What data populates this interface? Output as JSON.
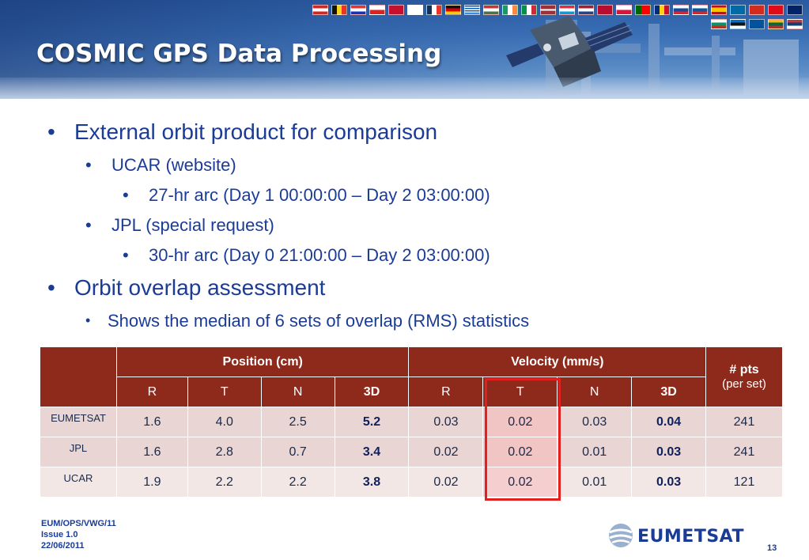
{
  "slide": {
    "title": "COSMIC GPS Data Processing",
    "page_number": "13"
  },
  "bullets": [
    {
      "level": 1,
      "text": "External orbit product for comparison"
    },
    {
      "level": 2,
      "text": "UCAR (website)"
    },
    {
      "level": 3,
      "text": "27-hr arc (Day 1 00:00:00 – Day 2 03:00:00)"
    },
    {
      "level": 2,
      "text": "JPL (special request)"
    },
    {
      "level": 3,
      "text": "30-hr arc (Day 0 21:00:00 – Day 2 03:00:00)"
    },
    {
      "level": 1,
      "text": "Orbit overlap assessment"
    },
    {
      "level": 2,
      "text": "Shows the median of 6 sets of overlap (RMS) statistics"
    }
  ],
  "table": {
    "group_headers": [
      "Position (cm)",
      "Velocity (mm/s)"
    ],
    "pts_header": "# pts",
    "pts_subheader": "(per set)",
    "sub_headers": [
      "R",
      "T",
      "N",
      "3D",
      "R",
      "T",
      "N",
      "3D"
    ],
    "rows": [
      {
        "label": "EUMETSAT",
        "values": [
          "1.6",
          "4.0",
          "2.5",
          "5.2",
          "0.03",
          "0.02",
          "0.03",
          "0.04"
        ],
        "pts": "241"
      },
      {
        "label": "JPL",
        "values": [
          "1.6",
          "2.8",
          "0.7",
          "3.4",
          "0.02",
          "0.02",
          "0.01",
          "0.03"
        ],
        "pts": "241"
      },
      {
        "label": "UCAR",
        "values": [
          "1.9",
          "2.2",
          "2.2",
          "3.8",
          "0.02",
          "0.02",
          "0.01",
          "0.03"
        ],
        "pts": "121"
      }
    ],
    "highlighted_column": "Velocity T",
    "highlight_color": "#e32020"
  },
  "footer": {
    "line1": "EUM/OPS/VWG/11",
    "line2": "Issue 1.0",
    "line3": "22/06/2011"
  },
  "logo": {
    "text": "EUMETSAT",
    "icon": "eumetsat-globe-icon"
  },
  "colors": {
    "table_header": "#8e2a1c",
    "text_blue": "#1b3c96",
    "row_shade": "#e9d5d3"
  }
}
